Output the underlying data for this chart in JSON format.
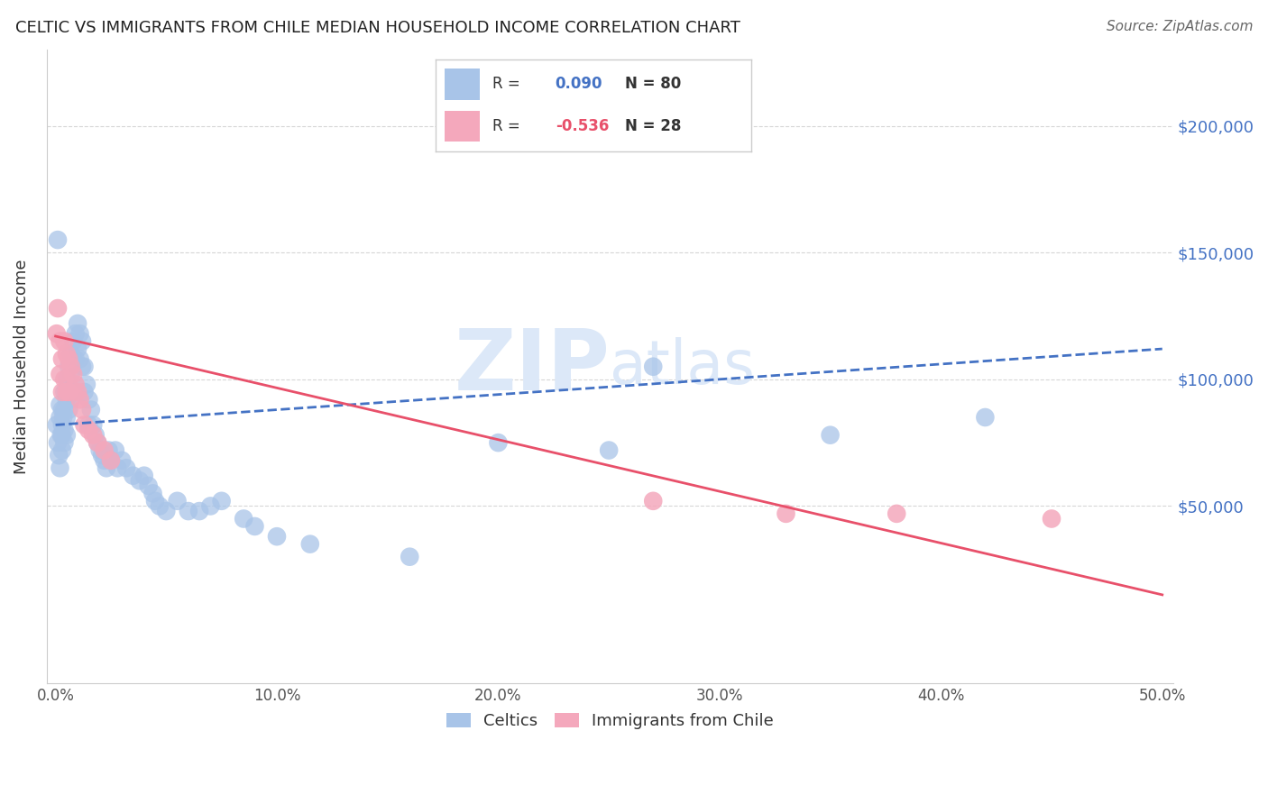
{
  "title": "CELTIC VS IMMIGRANTS FROM CHILE MEDIAN HOUSEHOLD INCOME CORRELATION CHART",
  "source": "Source: ZipAtlas.com",
  "ylabel": "Median Household Income",
  "xlabel_ticks": [
    "0.0%",
    "10.0%",
    "20.0%",
    "30.0%",
    "40.0%",
    "50.0%"
  ],
  "xlabel_vals": [
    0.0,
    0.1,
    0.2,
    0.3,
    0.4,
    0.5
  ],
  "ytick_labels": [
    "$50,000",
    "$100,000",
    "$150,000",
    "$200,000"
  ],
  "ytick_vals": [
    50000,
    100000,
    150000,
    200000
  ],
  "ylim": [
    -20000,
    230000
  ],
  "xlim": [
    -0.004,
    0.505
  ],
  "r_celtic": 0.09,
  "n_celtic": 80,
  "r_chile": -0.536,
  "n_chile": 28,
  "celtics_color": "#a8c4e8",
  "chile_color": "#f4a8bc",
  "trend_celtic_color": "#4472c4",
  "trend_chile_color": "#e8506a",
  "watermark_zip": "ZIP",
  "watermark_atlas": "atlas",
  "watermark_color": "#dce8f8",
  "legend_label_celtic": "Celtics",
  "legend_label_chile": "Immigrants from Chile",
  "celtic_trend_x": [
    0.0,
    0.5
  ],
  "celtic_trend_y": [
    82000,
    112000
  ],
  "chile_trend_x": [
    0.0,
    0.5
  ],
  "chile_trend_y": [
    117000,
    15000
  ],
  "celtics_x": [
    0.0005,
    0.001,
    0.001,
    0.0015,
    0.002,
    0.002,
    0.002,
    0.0025,
    0.003,
    0.003,
    0.003,
    0.003,
    0.0035,
    0.004,
    0.004,
    0.004,
    0.004,
    0.005,
    0.005,
    0.005,
    0.005,
    0.006,
    0.006,
    0.006,
    0.007,
    0.007,
    0.007,
    0.008,
    0.008,
    0.008,
    0.009,
    0.009,
    0.01,
    0.01,
    0.011,
    0.011,
    0.012,
    0.012,
    0.013,
    0.013,
    0.014,
    0.015,
    0.015,
    0.016,
    0.017,
    0.018,
    0.019,
    0.02,
    0.021,
    0.022,
    0.023,
    0.024,
    0.025,
    0.027,
    0.028,
    0.03,
    0.032,
    0.035,
    0.038,
    0.04,
    0.042,
    0.044,
    0.045,
    0.047,
    0.05,
    0.055,
    0.06,
    0.065,
    0.07,
    0.075,
    0.085,
    0.09,
    0.1,
    0.115,
    0.16,
    0.2,
    0.25,
    0.27,
    0.35,
    0.42
  ],
  "celtics_y": [
    82000,
    155000,
    75000,
    70000,
    90000,
    85000,
    65000,
    78000,
    88000,
    82000,
    78000,
    72000,
    85000,
    95000,
    88000,
    80000,
    75000,
    100000,
    92000,
    85000,
    78000,
    105000,
    98000,
    88000,
    110000,
    102000,
    92000,
    115000,
    108000,
    95000,
    118000,
    108000,
    122000,
    112000,
    118000,
    108000,
    115000,
    105000,
    105000,
    95000,
    98000,
    92000,
    82000,
    88000,
    82000,
    78000,
    75000,
    72000,
    70000,
    68000,
    65000,
    72000,
    68000,
    72000,
    65000,
    68000,
    65000,
    62000,
    60000,
    62000,
    58000,
    55000,
    52000,
    50000,
    48000,
    52000,
    48000,
    48000,
    50000,
    52000,
    45000,
    42000,
    38000,
    35000,
    30000,
    75000,
    72000,
    105000,
    78000,
    85000
  ],
  "chile_x": [
    0.0005,
    0.001,
    0.002,
    0.002,
    0.003,
    0.003,
    0.004,
    0.004,
    0.005,
    0.005,
    0.006,
    0.006,
    0.007,
    0.008,
    0.009,
    0.01,
    0.011,
    0.012,
    0.013,
    0.015,
    0.017,
    0.019,
    0.022,
    0.025,
    0.27,
    0.33,
    0.38,
    0.45
  ],
  "chile_y": [
    118000,
    128000,
    115000,
    102000,
    108000,
    95000,
    115000,
    100000,
    110000,
    95000,
    108000,
    95000,
    105000,
    102000,
    98000,
    95000,
    92000,
    88000,
    82000,
    80000,
    78000,
    75000,
    72000,
    68000,
    52000,
    47000,
    47000,
    45000
  ]
}
